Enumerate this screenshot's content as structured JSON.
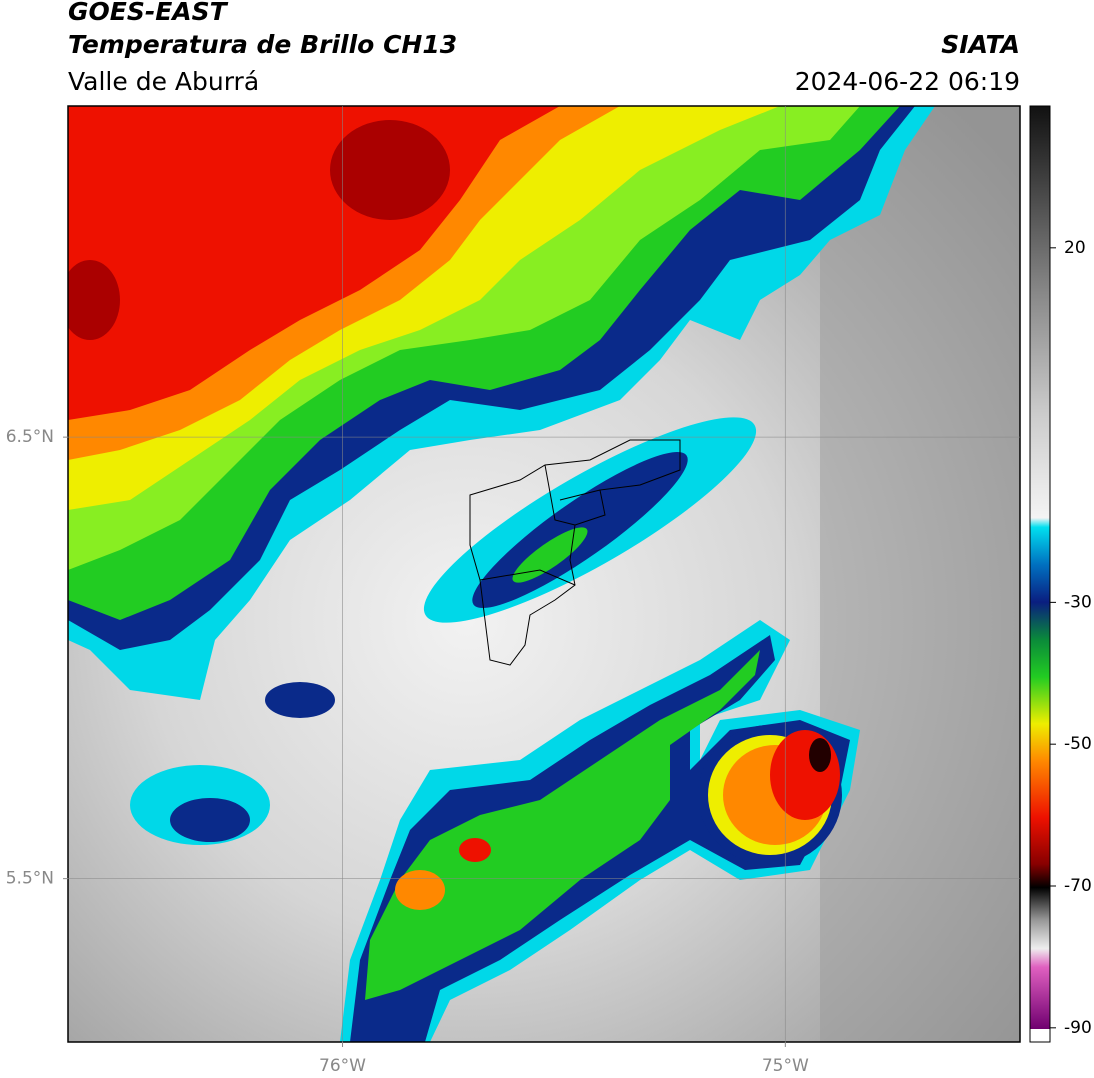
{
  "header": {
    "title": "GOES-EAST",
    "subtitle": "Temperatura de Brillo CH13",
    "source": "SIATA",
    "region": "Valle de Aburrá",
    "timestamp": "2024-06-22 06:19"
  },
  "map": {
    "xlim": [
      -76.62,
      -74.47
    ],
    "ylim": [
      5.13,
      7.25
    ],
    "xticks": [
      {
        "value": -76,
        "label": "76°W"
      },
      {
        "value": -75,
        "label": "75°W"
      }
    ],
    "yticks": [
      {
        "value": 6.5,
        "label": "6.5°N"
      },
      {
        "value": 5.5,
        "label": "5.5°N"
      }
    ],
    "grid": true
  },
  "colorbar": {
    "lim": [
      -92,
      40
    ],
    "ticks": [
      20,
      -30,
      -50,
      -70,
      -90
    ]
  }
}
